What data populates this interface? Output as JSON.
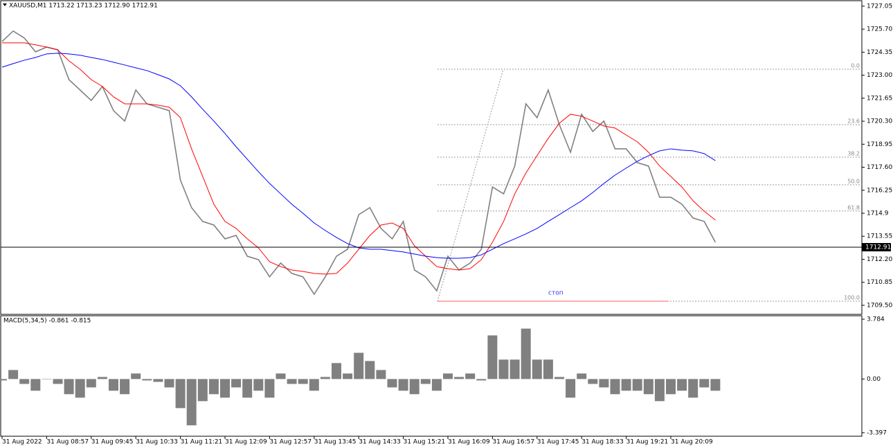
{
  "chart_data": [
    {
      "type": "line",
      "title": "XAUUSD,M1  1713.22 1713.23 1712.90 1712.91",
      "series": [
        {
          "color": "#808080",
          "values": [
            1724.98,
            1725.59,
            1725.18,
            1724.37,
            1724.65,
            1724.49,
            1722.74,
            1722.13,
            1721.52,
            1722.34,
            1720.92,
            1720.31,
            1722.13,
            1721.32,
            1721.12,
            1720.92,
            1716.85,
            1715.23,
            1714.42,
            1714.21,
            1713.4,
            1713.6,
            1712.38,
            1712.18,
            1711.17,
            1711.98,
            1711.37,
            1711.17,
            1710.15,
            1711.17,
            1712.38,
            1712.79,
            1714.82,
            1715.23,
            1714.01,
            1713.4,
            1714.42,
            1711.57,
            1711.17,
            1710.35,
            1712.38,
            1711.57,
            1711.98,
            1712.79,
            1716.44,
            1716.04,
            1717.67,
            1721.32,
            1720.51,
            1722.13,
            1720.1,
            1718.48,
            1720.71,
            1719.7,
            1720.31,
            1718.68,
            1718.68,
            1717.87,
            1717.67,
            1715.84,
            1715.84,
            1715.43,
            1714.62,
            1714.42,
            1713.2
          ]
        },
        {
          "color": "#ff0000",
          "values": [
            1724.9,
            1724.9,
            1724.9,
            1724.78,
            1724.65,
            1724.49,
            1723.84,
            1723.35,
            1722.74,
            1722.34,
            1721.73,
            1721.32,
            1721.32,
            1721.32,
            1721.24,
            1721.12,
            1720.51,
            1718.68,
            1717.06,
            1715.43,
            1714.42,
            1714.01,
            1713.4,
            1712.87,
            1712.06,
            1711.77,
            1711.57,
            1711.49,
            1711.37,
            1711.33,
            1711.37,
            1711.98,
            1712.79,
            1713.6,
            1714.21,
            1714.33,
            1714.01,
            1712.99,
            1712.38,
            1711.77,
            1711.65,
            1711.57,
            1711.65,
            1712.18,
            1713.2,
            1714.42,
            1716.04,
            1717.26,
            1718.28,
            1719.29,
            1720.18,
            1720.71,
            1720.59,
            1720.31,
            1720.02,
            1719.9,
            1719.49,
            1719.09,
            1718.48,
            1717.67,
            1717.06,
            1716.44,
            1715.63,
            1715.02,
            1714.5
          ]
        },
        {
          "color": "#0000ff",
          "values": [
            1723.47,
            1723.68,
            1723.88,
            1724.04,
            1724.25,
            1724.29,
            1724.25,
            1724.17,
            1724.04,
            1723.92,
            1723.76,
            1723.6,
            1723.43,
            1723.27,
            1723.03,
            1722.78,
            1722.38,
            1721.73,
            1721.0,
            1720.31,
            1719.58,
            1718.8,
            1718.07,
            1717.34,
            1716.65,
            1716.04,
            1715.43,
            1714.9,
            1714.33,
            1713.89,
            1713.48,
            1713.12,
            1712.87,
            1712.79,
            1712.79,
            1712.71,
            1712.63,
            1712.51,
            1712.38,
            1712.3,
            1712.26,
            1712.26,
            1712.3,
            1712.46,
            1712.79,
            1713.12,
            1713.4,
            1713.69,
            1714.01,
            1714.42,
            1714.82,
            1715.23,
            1715.63,
            1716.12,
            1716.65,
            1717.14,
            1717.55,
            1717.95,
            1718.28,
            1718.56,
            1718.68,
            1718.6,
            1718.56,
            1718.4,
            1717.99
          ]
        }
      ],
      "ylim": [
        1709.01,
        1727.33
      ],
      "yticks": [
        1727.05,
        {
          "value": 1725.7,
          "label": "1725.70"
        },
        1724.35,
        {
          "value": 1723,
          "label": "1723.00"
        },
        1721.65,
        {
          "value": 1720.3,
          "label": "1720.30"
        },
        1718.95,
        {
          "value": 1717.6,
          "label": "1717.60"
        },
        1716.25,
        1714.9,
        1713.55,
        {
          "value": 1712.2,
          "label": "1712.20"
        },
        1710.85,
        {
          "value": 1709.5,
          "label": "1709.50"
        }
      ],
      "current_price": 1712.91,
      "fib_levels": [
        {
          "label": "0.0",
          "value": 1723.35
        },
        {
          "label": "23.6",
          "value": 1720.1
        },
        {
          "label": "38.2",
          "value": 1718.19
        },
        {
          "label": "50.0",
          "value": 1716.57
        },
        {
          "label": "61.8",
          "value": 1715.03
        },
        {
          "label": "100.0",
          "value": 1709.74
        }
      ],
      "stop": {
        "label": "стоп",
        "value": 1709.74
      }
    },
    {
      "type": "bar",
      "title": "MACD(5,34,5) -0.861 -0.815",
      "color": "#808080",
      "categories": [
        "31 Aug 2022",
        null,
        null,
        null,
        "31 Aug 08:57",
        null,
        null,
        null,
        "31 Aug 09:45",
        null,
        null,
        null,
        "31 Aug 10:33",
        null,
        null,
        null,
        "31 Aug 11:21",
        null,
        null,
        null,
        "31 Aug 12:09",
        null,
        null,
        null,
        "31 Aug 12:57",
        null,
        null,
        null,
        "31 Aug 13:45",
        null,
        null,
        null,
        "31 Aug 14:33",
        null,
        null,
        null,
        "31 Aug 15:21",
        null,
        null,
        null,
        "31 Aug 16:09",
        null,
        null,
        null,
        "31 Aug 16:57",
        null,
        null,
        null,
        "31 Aug 17:45",
        null,
        null,
        null,
        "31 Aug 18:33",
        null,
        null,
        null,
        "31 Aug 19:21",
        null,
        null,
        null,
        "31 Aug 20:09",
        null,
        null,
        null,
        null
      ],
      "values": [
        -0.09,
        0.57,
        -0.31,
        -0.74,
        0,
        -0.31,
        -0.96,
        -1.18,
        -0.53,
        0.13,
        -0.74,
        -0.96,
        0.35,
        -0.09,
        -0.18,
        -0.53,
        -1.84,
        -2.93,
        -1.4,
        -0.96,
        -1.18,
        -0.53,
        -1.18,
        -0.74,
        -1.18,
        0.35,
        -0.31,
        -0.31,
        -0.74,
        0.13,
        1.01,
        0.35,
        1.66,
        1.14,
        0.57,
        -0.53,
        -0.74,
        -0.96,
        -0.31,
        -0.74,
        0.35,
        0.13,
        0.35,
        -0.09,
        2.76,
        1.23,
        1.23,
        3.19,
        1.23,
        1.23,
        0.13,
        -1.18,
        0.35,
        -0.31,
        -0.53,
        -0.96,
        -0.74,
        -0.74,
        -0.96,
        -1.4,
        -0.96,
        -0.74,
        -1.18,
        -0.53,
        -0.74
      ],
      "ylim": [
        -3.62,
        3.96
      ],
      "yticks": [
        3.784,
        {
          "value": 0,
          "label": "0.00"
        },
        -3.397
      ]
    }
  ]
}
